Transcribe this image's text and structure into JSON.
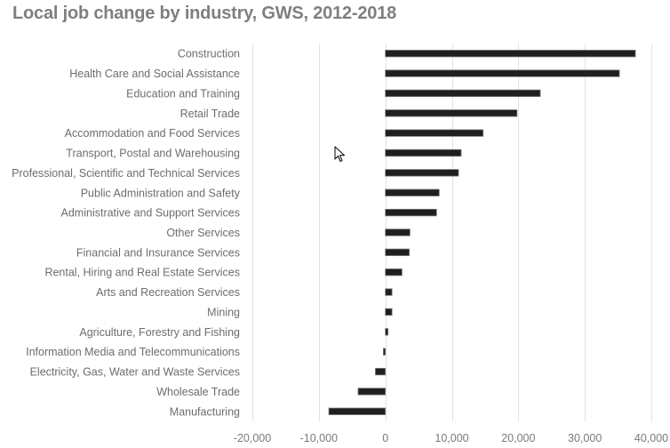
{
  "chart_data": {
    "type": "bar",
    "orientation": "horizontal",
    "title": "Local job change by industry, GWS, 2012-2018",
    "xlabel": "",
    "ylabel": "",
    "xlim": [
      -20000,
      40000
    ],
    "xticks": [
      -20000,
      -10000,
      0,
      10000,
      20000,
      30000,
      40000
    ],
    "xtick_labels": [
      "-20,000",
      "-10,000",
      "0",
      "10,000",
      "20,000",
      "30,000",
      "40,000"
    ],
    "grid": true,
    "legend": "none",
    "bar_color": "#1f1f1f",
    "categories": [
      "Construction",
      "Health Care and Social Assistance",
      "Education and Training",
      "Retail Trade",
      "Accommodation and Food Services",
      "Transport, Postal and Warehousing",
      "Professional, Scientific and Technical Services",
      "Public Administration and Safety",
      "Administrative and Support Services",
      "Other Services",
      "Financial and Insurance Services",
      "Rental, Hiring and Real Estate Services",
      "Arts and Recreation Services",
      "Mining",
      "Agriculture, Forestry and Fishing",
      "Information Media and Telecommunications",
      "Electricity, Gas, Water and Waste Services",
      "Wholesale Trade",
      "Manufacturing"
    ],
    "values": [
      37600,
      35200,
      23300,
      19800,
      14700,
      11400,
      11000,
      8100,
      7700,
      3700,
      3600,
      2500,
      1000,
      1000,
      400,
      -300,
      -1500,
      -4100,
      -8500
    ]
  },
  "cursor": {
    "icon": "mouse-pointer-icon"
  }
}
